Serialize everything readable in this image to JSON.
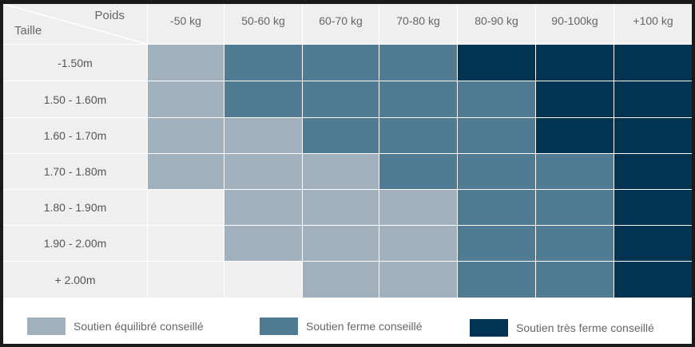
{
  "corner": {
    "poids": "Poids",
    "taille": "Taille"
  },
  "columns": [
    "-50 kg",
    "50-60 kg",
    "60-70 kg",
    "70-80 kg",
    "80-90 kg",
    "90-100kg",
    "+100 kg"
  ],
  "rows": [
    {
      "label": "-1.50m",
      "levels": [
        1,
        2,
        2,
        2,
        3,
        3,
        3
      ]
    },
    {
      "label": "1.50 - 1.60m",
      "levels": [
        1,
        2,
        2,
        2,
        2,
        3,
        3
      ]
    },
    {
      "label": "1.60 - 1.70m",
      "levels": [
        1,
        1,
        2,
        2,
        2,
        3,
        3
      ]
    },
    {
      "label": "1.70 - 1.80m",
      "levels": [
        1,
        1,
        1,
        2,
        2,
        2,
        3
      ]
    },
    {
      "label": "1.80 - 1.90m",
      "levels": [
        0,
        1,
        1,
        1,
        2,
        2,
        3
      ]
    },
    {
      "label": "1.90 - 2.00m",
      "levels": [
        0,
        1,
        1,
        1,
        2,
        2,
        3
      ]
    },
    {
      "label": "+ 2.00m",
      "levels": [
        0,
        0,
        1,
        1,
        2,
        2,
        3
      ]
    }
  ],
  "legend": [
    {
      "label": "Soutien équilibré conseillé",
      "color": "#a0b1bd"
    },
    {
      "label": "Soutien ferme conseillé",
      "color": "#4f7b93"
    },
    {
      "label": "Soutien très ferme conseillé",
      "color": "#003452"
    }
  ]
}
